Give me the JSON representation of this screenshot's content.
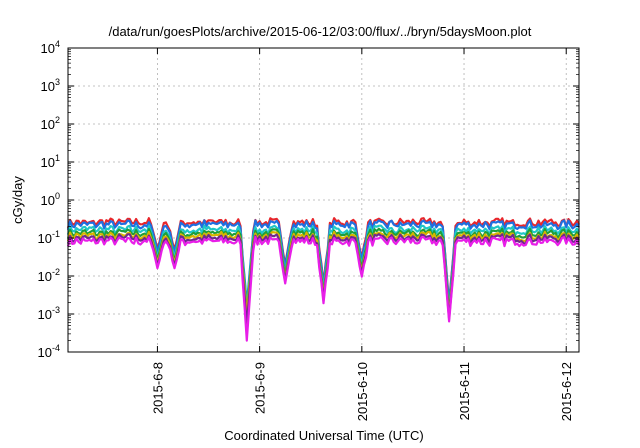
{
  "chart_data": {
    "type": "line",
    "title": "/data/run/goesPlots/archive/2015-06-12/03:00/flux/../bryn/5daysMoon.plot",
    "xlabel": "Coordinated Universal Time (UTC)",
    "ylabel": "cGy/day",
    "yscale": "log",
    "ylim_exp": [
      -4,
      4
    ],
    "xlim": [
      "2015-06-07 03:00",
      "2015-06-12 03:00"
    ],
    "grid": true,
    "x_ticks": [
      {
        "label": "2015-6-8",
        "date": "2015-06-08 00:00"
      },
      {
        "label": "2015-6-9",
        "date": "2015-06-09 00:00"
      },
      {
        "label": "2015-6-10",
        "date": "2015-06-10 00:00"
      },
      {
        "label": "2015-6-11",
        "date": "2015-06-11 00:00"
      },
      {
        "label": "2015-6-12",
        "date": "2015-06-12 00:00"
      }
    ],
    "y_ticks": [
      {
        "base": "10",
        "exp": "-4",
        "value": -4
      },
      {
        "base": "10",
        "exp": "-3",
        "value": -3
      },
      {
        "base": "10",
        "exp": "-2",
        "value": -2
      },
      {
        "base": "10",
        "exp": "-1",
        "value": -1
      },
      {
        "base": "10",
        "exp": "0",
        "value": 0
      },
      {
        "base": "10",
        "exp": "1",
        "value": 1
      },
      {
        "base": "10",
        "exp": "2",
        "value": 2
      },
      {
        "base": "10",
        "exp": "3",
        "value": 3
      },
      {
        "base": "10",
        "exp": "4",
        "value": 4
      }
    ],
    "series": [
      {
        "color": "#e8262b",
        "level": 0.25,
        "min_fill": 0.0012
      },
      {
        "color": "#1f6fe0",
        "level": 0.22,
        "min_fill": 0.0018
      },
      {
        "color": "#1fc7c7",
        "level": 0.16,
        "min_fill": 0.0015
      },
      {
        "color": "#1e9e3a",
        "level": 0.13,
        "min_fill": 0.0011
      },
      {
        "color": "#d7b500",
        "level": 0.11,
        "min_fill": 0.0009
      },
      {
        "color": "#6e2a8c",
        "level": 0.095,
        "min_fill": 0.0005
      },
      {
        "color": "#e81ee8",
        "level": 0.08,
        "min_fill": 0.0002
      }
    ],
    "dips": [
      {
        "date": "2015-06-08 00:00",
        "value": 0.05
      },
      {
        "date": "2015-06-08 04:00",
        "value": 0.05
      },
      {
        "date": "2015-06-08 21:00",
        "value": 0.0002
      },
      {
        "date": "2015-06-09 06:00",
        "value": 0.02
      },
      {
        "date": "2015-06-09 15:00",
        "value": 0.006
      },
      {
        "date": "2015-06-10 00:00",
        "value": 0.03
      },
      {
        "date": "2015-06-10 20:30",
        "value": 0.002
      }
    ]
  }
}
